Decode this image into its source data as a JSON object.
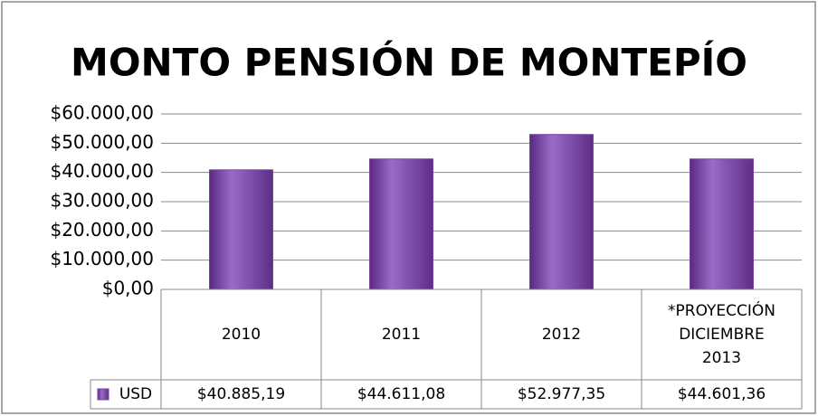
{
  "chart_data": {
    "type": "bar",
    "title": "MONTO PENSIÓN DE MONTEPÍO",
    "categories": [
      "2010",
      "2011",
      "2012",
      "*PROYECCIÓN DICIEMBRE 2013"
    ],
    "series": [
      {
        "name": "USD",
        "color": "#7b3fa6",
        "values": [
          40885.19,
          44611.08,
          52977.35,
          44601.36
        ],
        "value_labels": [
          "$40.885,19",
          "$44.611,08",
          "$52.977,35",
          "$44.601,36"
        ]
      }
    ],
    "ylim": [
      0,
      60000
    ],
    "yticks": [
      {
        "value": 0,
        "label": "$0,00"
      },
      {
        "value": 10000,
        "label": "$10.000,00"
      },
      {
        "value": 20000,
        "label": "$20.000,00"
      },
      {
        "value": 30000,
        "label": "$30.000,00"
      },
      {
        "value": 40000,
        "label": "$40.000,00"
      },
      {
        "value": 50000,
        "label": "$50.000,00"
      },
      {
        "value": 60000,
        "label": "$60.000,00"
      }
    ],
    "grid": true,
    "data_table": true
  }
}
